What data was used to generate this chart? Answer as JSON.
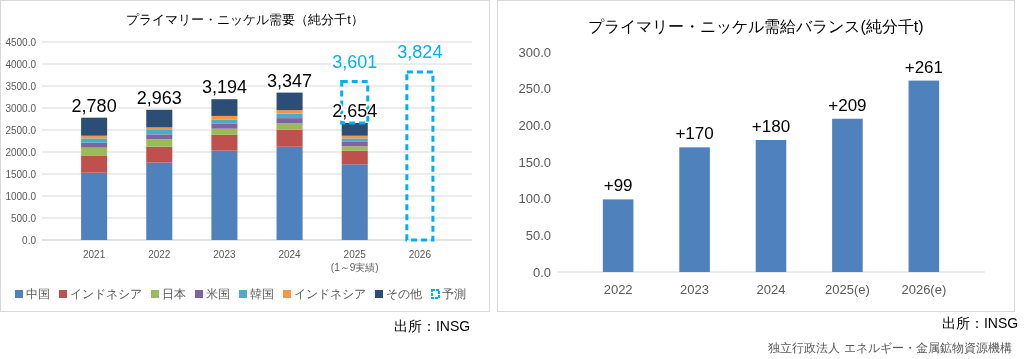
{
  "chart_data": [
    {
      "type": "bar",
      "title": "プライマリー・ニッケル需要（純分千t）",
      "stacked": true,
      "categories": [
        "2021",
        "2022",
        "2023",
        "2024",
        "2025\n(1～9実績)",
        "2026"
      ],
      "series": [
        {
          "name": "中国",
          "color": "#4f81bd",
          "values": [
            1530,
            1760,
            2030,
            2120,
            1720,
            null
          ]
        },
        {
          "name": "インドネシア",
          "color": "#c0504d",
          "values": [
            380,
            360,
            360,
            390,
            310,
            null
          ]
        },
        {
          "name": "日本",
          "color": "#9bbb59",
          "values": [
            190,
            170,
            140,
            140,
            100,
            null
          ]
        },
        {
          "name": "米国",
          "color": "#8064a2",
          "values": [
            110,
            110,
            110,
            120,
            100,
            null
          ]
        },
        {
          "name": "韓国",
          "color": "#4bacc6",
          "values": [
            100,
            100,
            100,
            100,
            80,
            null
          ]
        },
        {
          "name": "インドネシア",
          "color": "#f79646",
          "values": [
            60,
            60,
            80,
            80,
            60,
            null
          ]
        },
        {
          "name": "その他",
          "color": "#2c4d75",
          "values": [
            410,
            400,
            380,
            400,
            290,
            null
          ]
        },
        {
          "name": "予測",
          "color": "#00b0f0",
          "line_style": "dashed",
          "values": [
            null,
            null,
            null,
            null,
            940,
            3820
          ]
        }
      ],
      "ylim": [
        0,
        4500
      ],
      "yticks": [
        {
          "value": 0,
          "label": "0.0"
        },
        {
          "value": 500,
          "label": "500.0"
        },
        {
          "value": 1000,
          "label": "1000.0"
        },
        {
          "value": 1500,
          "label": "1500.0"
        },
        {
          "value": 2000,
          "label": "2000.0"
        },
        {
          "value": 2500,
          "label": "2500.0"
        },
        {
          "value": 3000,
          "label": "3000.0"
        },
        {
          "value": 3500,
          "label": "3500.0"
        },
        {
          "value": 4000,
          "label": "4000.0"
        },
        {
          "value": 4500,
          "label": "4500.0"
        }
      ],
      "grid": "y",
      "legend": "bottom",
      "annotations": [
        {
          "text": "2,780",
          "x": "2021",
          "y": 2780
        },
        {
          "text": "2,963",
          "x": "2022",
          "y": 2963
        },
        {
          "text": "3,194",
          "x": "2023",
          "y": 3194
        },
        {
          "text": "3,347",
          "x": "2024",
          "y": 3347
        },
        {
          "text": "2,654",
          "x": "2025\n(1～9実績)",
          "y": 2654
        },
        {
          "text": "3,601",
          "x": "2025\n(1～9実績)",
          "y": 3601
        },
        {
          "text": "3,824",
          "x": "2026",
          "y": 3824
        },
        "出所：INSG"
      ]
    },
    {
      "type": "bar",
      "title": "プライマリー・ニッケル需給バランス(純分千t)",
      "categories": [
        "2022",
        "2023",
        "2024",
        "2025(e)",
        "2026(e)"
      ],
      "values": [
        99,
        170,
        180,
        209,
        261
      ],
      "color": "#4f81bd",
      "value_labels": [
        "+99",
        "+170",
        "+180",
        "+209",
        "+261"
      ],
      "ylim": [
        0,
        300
      ],
      "yticks": [
        {
          "value": 0,
          "label": "0.0"
        },
        {
          "value": 50,
          "label": "50.0"
        },
        {
          "value": 100,
          "label": "100.0"
        },
        {
          "value": 150,
          "label": "150.0"
        },
        {
          "value": 200,
          "label": "200.0"
        },
        {
          "value": 250,
          "label": "250.0"
        },
        {
          "value": 300,
          "label": "300.0"
        }
      ],
      "grid": false,
      "annotations": [
        "出所：INSG",
        "独立行政法人 エネルギー・金属鉱物資源機構"
      ]
    }
  ]
}
